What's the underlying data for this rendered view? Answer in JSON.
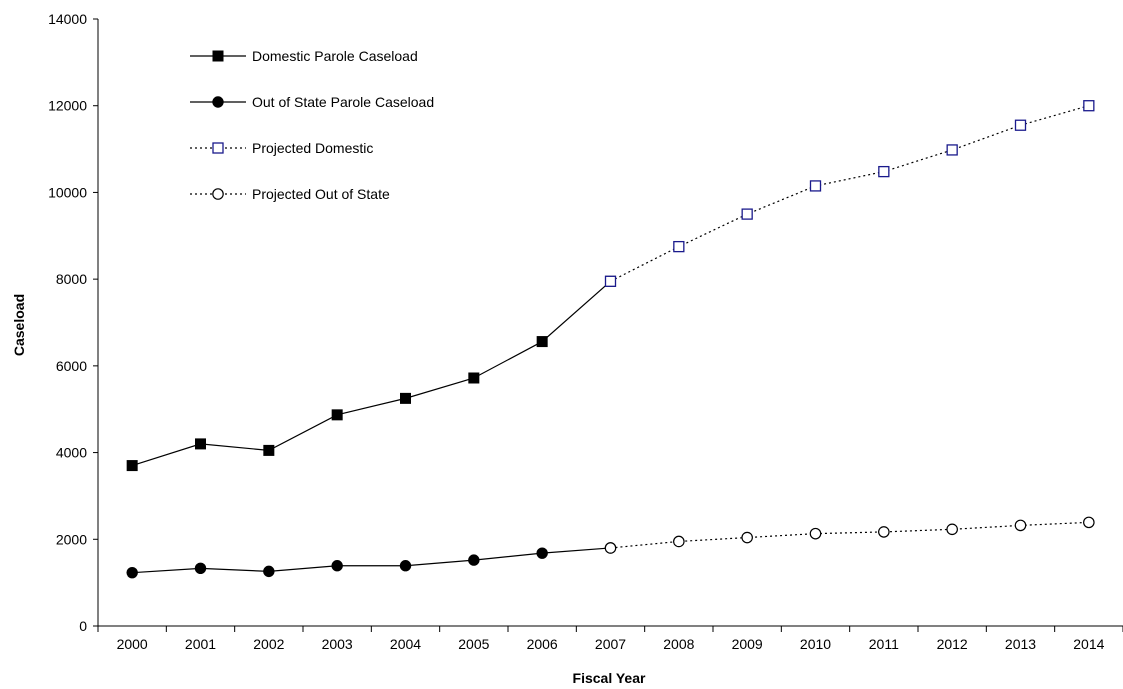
{
  "chart_data": {
    "type": "line",
    "title": "",
    "xlabel": "Fiscal Year",
    "ylabel": "Caseload",
    "x": [
      "2000",
      "2001",
      "2002",
      "2003",
      "2004",
      "2005",
      "2006",
      "2007",
      "2008",
      "2009",
      "2010",
      "2011",
      "2012",
      "2013",
      "2014"
    ],
    "ylim": [
      0,
      14000
    ],
    "yticks": [
      0,
      2000,
      4000,
      6000,
      8000,
      10000,
      12000,
      14000
    ],
    "grid": false,
    "legend_position": "top-left",
    "series": [
      {
        "name": "Domestic Parole Caseload",
        "line_style": "solid",
        "marker": "filled-square",
        "color": "#000000",
        "values": [
          3700,
          4200,
          4050,
          4870,
          5250,
          5720,
          6560,
          7950,
          null,
          null,
          null,
          null,
          null,
          null,
          null
        ]
      },
      {
        "name": "Out of State Parole Caseload",
        "line_style": "solid",
        "marker": "filled-circle",
        "color": "#000000",
        "values": [
          1230,
          1330,
          1260,
          1390,
          1390,
          1520,
          1680,
          1800,
          null,
          null,
          null,
          null,
          null,
          null,
          null
        ]
      },
      {
        "name": "Projected Domestic",
        "line_style": "dotted",
        "marker": "open-square",
        "color": "#000000",
        "marker_color": "#1a1a8c",
        "values": [
          null,
          null,
          null,
          null,
          null,
          null,
          null,
          7950,
          8750,
          9500,
          10150,
          10480,
          10980,
          11550,
          12000
        ]
      },
      {
        "name": "Projected Out of State",
        "line_style": "dotted",
        "marker": "open-circle",
        "color": "#000000",
        "values": [
          null,
          null,
          null,
          null,
          null,
          null,
          null,
          1800,
          1950,
          2040,
          2130,
          2170,
          2230,
          2320,
          2390
        ]
      }
    ]
  }
}
